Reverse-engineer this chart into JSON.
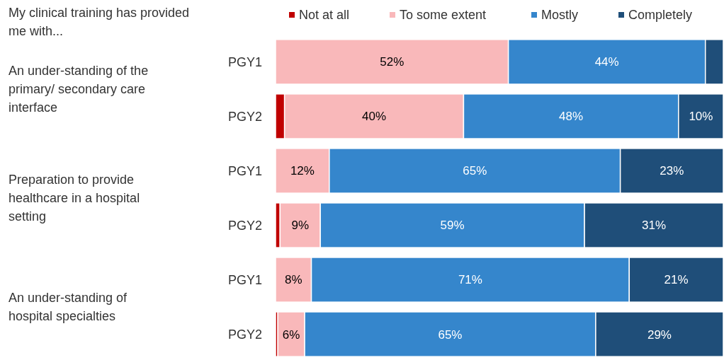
{
  "chart_data": {
    "type": "bar",
    "orientation": "horizontal",
    "stacked": true,
    "title": "My clinical training has provided me with...",
    "categories": [
      "PGY1",
      "PGY2",
      "PGY1",
      "PGY2",
      "PGY1",
      "PGY2"
    ],
    "annotations": [
      "An under-standing of the primary/ secondary care interface",
      "Preparation to provide healthcare in a hospital setting",
      "An under-standing of hospital specialties"
    ],
    "xlim": [
      0,
      100
    ],
    "legend": "top",
    "tick_labels": "y",
    "series": [
      {
        "name": "Not at all",
        "color": "#c00000",
        "values": [
          0,
          2,
          0,
          1,
          0,
          0.5
        ],
        "value_labels": [
          null,
          null,
          null,
          null,
          null,
          null
        ]
      },
      {
        "name": "To some extent",
        "color": "#f9b8ba",
        "values": [
          52,
          40,
          12,
          9,
          8,
          6
        ],
        "value_labels": [
          "52%",
          "40%",
          "12%",
          "9%",
          "8%",
          "6%"
        ]
      },
      {
        "name": "Mostly",
        "color": "#3586cc",
        "values": [
          44,
          48,
          65,
          59,
          71,
          65
        ],
        "value_labels": [
          "44%",
          "48%",
          "65%",
          "59%",
          "71%",
          "65%"
        ]
      },
      {
        "name": "Completely",
        "color": "#1f4e79",
        "values": [
          4,
          10,
          23,
          31,
          21,
          28.5
        ],
        "value_labels": [
          null,
          "10%",
          "23%",
          "31%",
          "21%",
          "29%"
        ]
      }
    ]
  }
}
